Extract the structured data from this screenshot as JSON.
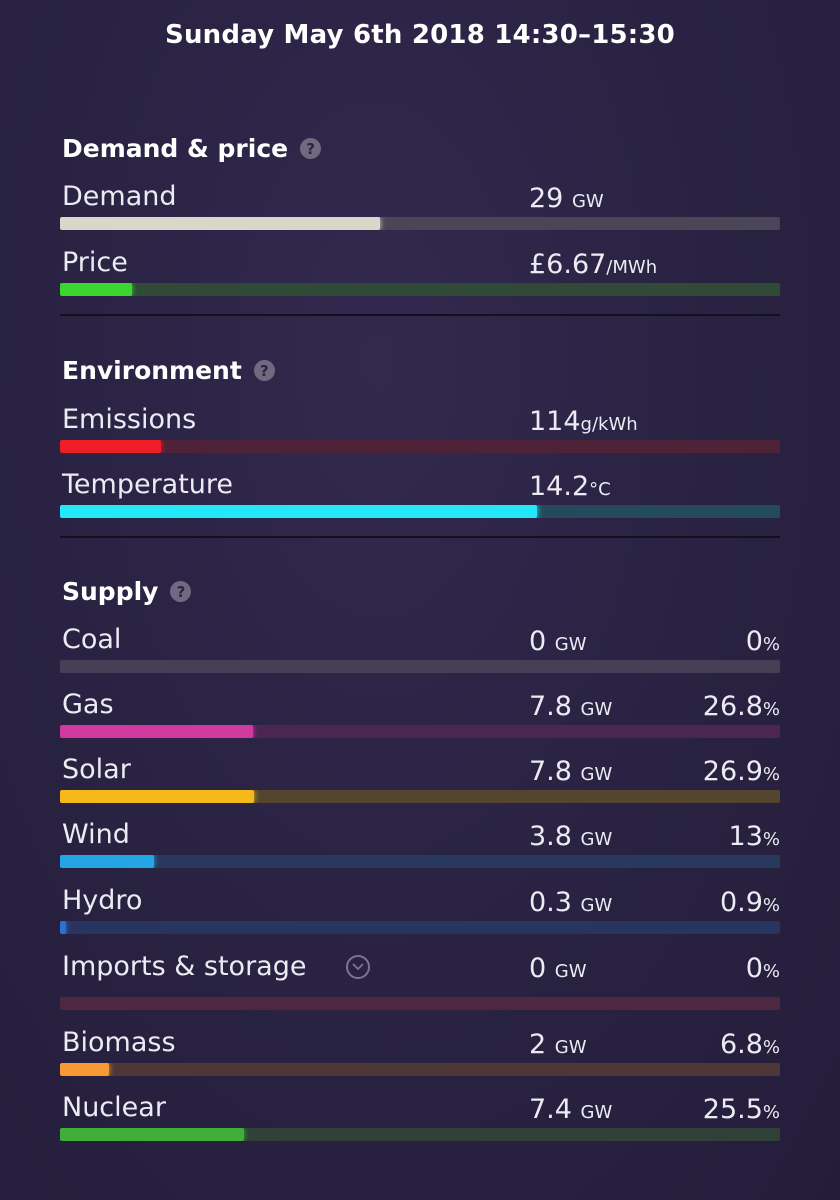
{
  "header": {
    "title": "Sunday May 6th 2018 14:30–15:30"
  },
  "sections": {
    "demand_price": {
      "title": "Demand & price",
      "rows": [
        {
          "label": "Demand",
          "value": "29",
          "unit": "GW",
          "level": 0.445,
          "color": "#d9d7c9",
          "track": "#4a4557"
        },
        {
          "label": "Price",
          "value": "£6.67",
          "unit": "/MWh",
          "level": 0.1,
          "color": "#3cd630",
          "track": "#2f4a36"
        }
      ]
    },
    "environment": {
      "title": "Environment",
      "rows": [
        {
          "label": "Emissions",
          "value": "114",
          "unit": "g/kWh",
          "level": 0.14,
          "color": "#ef1d28",
          "track": "#4e2237"
        },
        {
          "label": "Temperature",
          "value": "14.2",
          "unit": "°C",
          "level": 0.663,
          "color": "#23e8f7",
          "track": "#244b5c"
        }
      ]
    },
    "supply": {
      "title": "Supply",
      "rows": [
        {
          "label": "Coal",
          "value": "0",
          "unit": "GW",
          "pct": "0",
          "pct_unit": "%",
          "level": 0.0,
          "color": "#8a8795",
          "track": "#463f55"
        },
        {
          "label": "Gas",
          "value": "7.8",
          "unit": "GW",
          "pct": "26.8",
          "pct_unit": "%",
          "level": 0.268,
          "color": "#d0399d",
          "track": "#4b2650"
        },
        {
          "label": "Solar",
          "value": "7.8",
          "unit": "GW",
          "pct": "26.9",
          "pct_unit": "%",
          "level": 0.269,
          "color": "#f6b91a",
          "track": "#54452f"
        },
        {
          "label": "Wind",
          "value": "3.8",
          "unit": "GW",
          "pct": "13",
          "pct_unit": "%",
          "level": 0.13,
          "color": "#24a6e6",
          "track": "#27395c"
        },
        {
          "label": "Hydro",
          "value": "0.3",
          "unit": "GW",
          "pct": "0.9",
          "pct_unit": "%",
          "level": 0.009,
          "color": "#2e6fd6",
          "track": "#283560"
        },
        {
          "label": "Imports & storage",
          "value": "0",
          "unit": "GW",
          "pct": "0",
          "pct_unit": "%",
          "level": 0.0,
          "color": "#a0324f",
          "track": "#4e2740"
        },
        {
          "label": "Biomass",
          "value": "2",
          "unit": "GW",
          "pct": "6.8",
          "pct_unit": "%",
          "level": 0.068,
          "color": "#f79a35",
          "track": "#4e3837"
        },
        {
          "label": "Nuclear",
          "value": "7.4",
          "unit": "GW",
          "pct": "25.5",
          "pct_unit": "%",
          "level": 0.255,
          "color": "#3fae3a",
          "track": "#2f4138"
        }
      ]
    }
  },
  "icons": {
    "help": "help-circle-icon",
    "expand": "chevron-down-circle-icon"
  }
}
